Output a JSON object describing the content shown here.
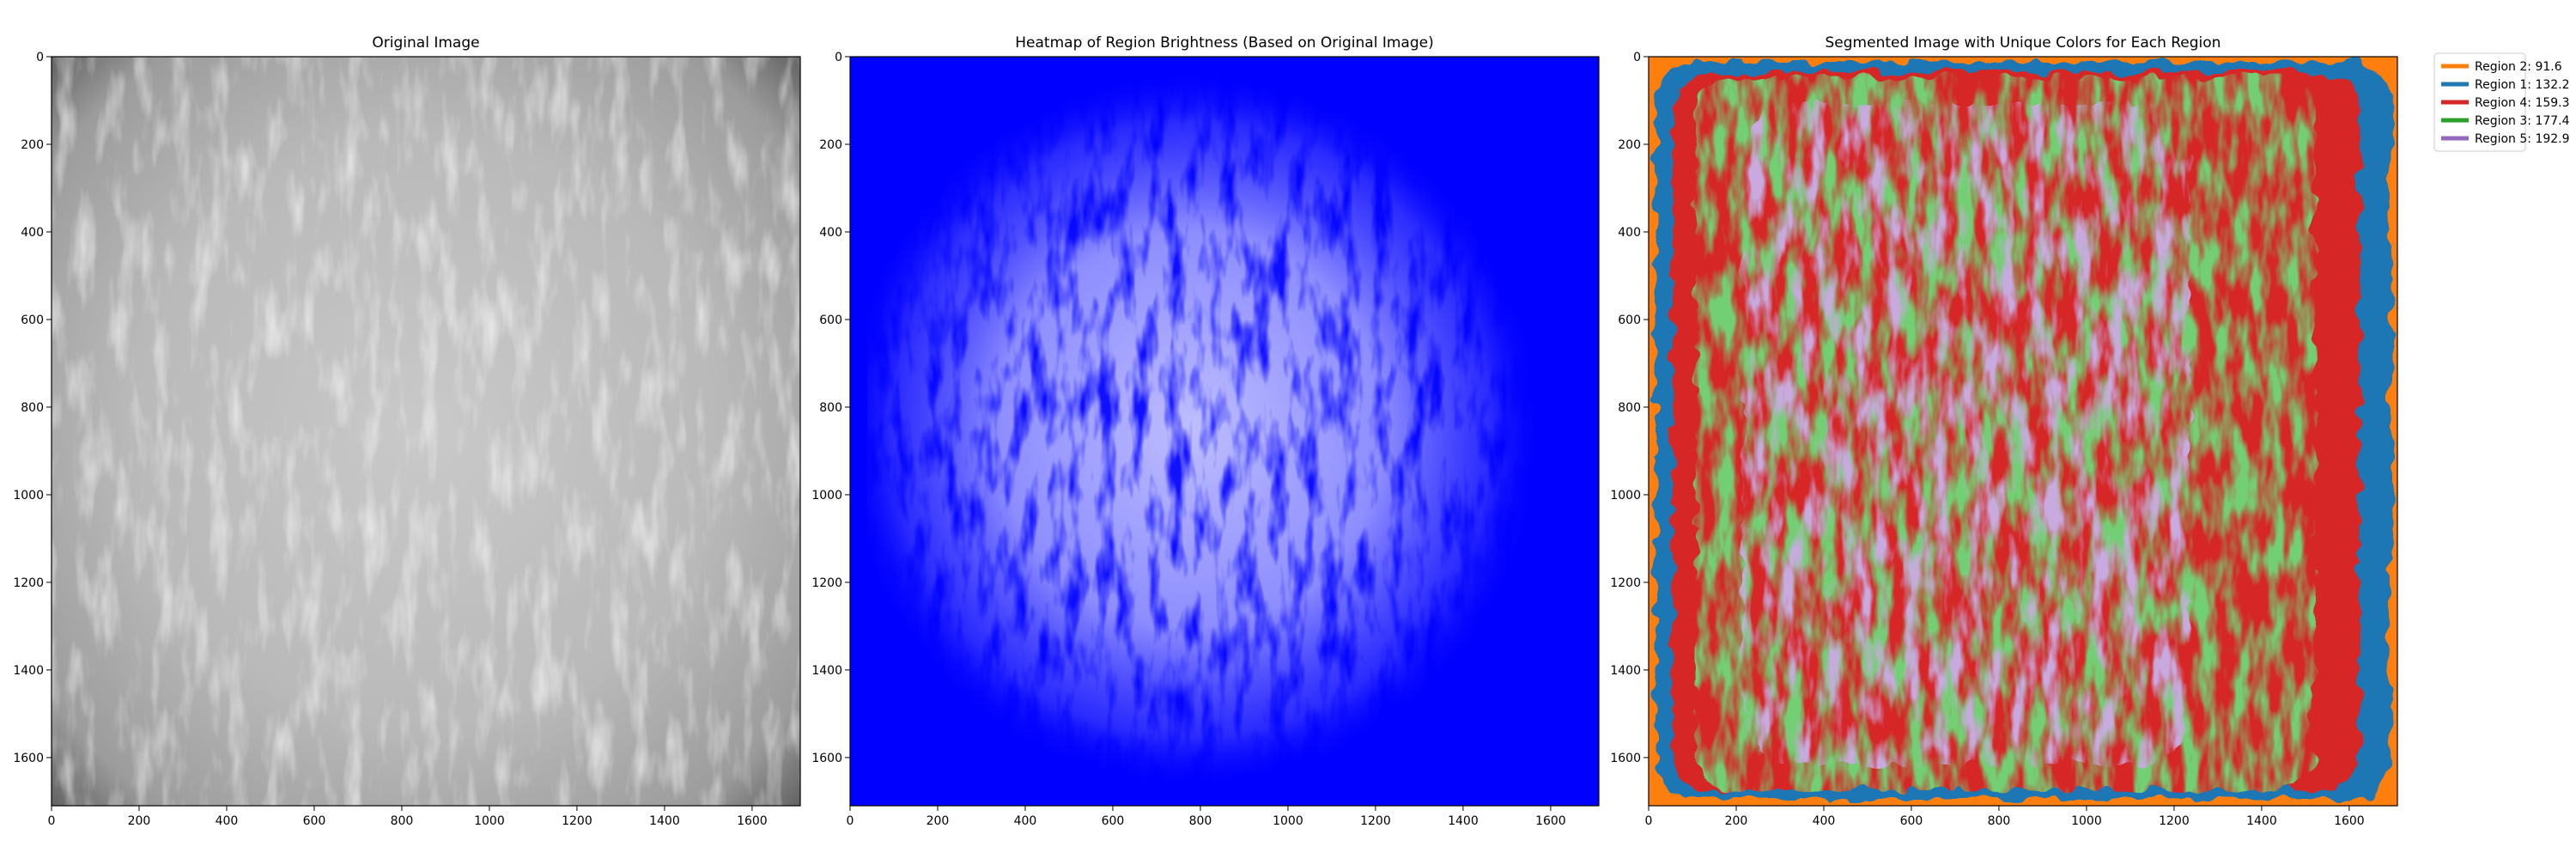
{
  "chart_data": [
    {
      "type": "image",
      "title": "Original Image",
      "colormap": "grayscale",
      "xlim": [
        0,
        1710
      ],
      "ylim": [
        1710,
        0
      ],
      "x_ticks": [
        "0",
        "200",
        "400",
        "600",
        "800",
        "1000",
        "1200",
        "1400",
        "1600"
      ],
      "y_ticks": [
        "0",
        "200",
        "400",
        "600",
        "800",
        "1000",
        "1200",
        "1400",
        "1600"
      ]
    },
    {
      "type": "heatmap",
      "title": "Heatmap of Region Brightness (Based on Original Image)",
      "colormap": [
        "#0000ff",
        "#c8c8ff"
      ],
      "xlim": [
        0,
        1710
      ],
      "ylim": [
        1710,
        0
      ],
      "x_ticks": [
        "0",
        "200",
        "400",
        "600",
        "800",
        "1000",
        "1200",
        "1400",
        "1600"
      ],
      "y_ticks": [
        "0",
        "200",
        "400",
        "600",
        "800",
        "1000",
        "1200",
        "1400",
        "1600"
      ]
    },
    {
      "type": "segmentation",
      "title": "Segmented Image with Unique Colors for Each Region",
      "xlim": [
        0,
        1710
      ],
      "ylim": [
        1710,
        0
      ],
      "x_ticks": [
        "0",
        "200",
        "400",
        "600",
        "800",
        "1000",
        "1200",
        "1400",
        "1600"
      ],
      "y_ticks": [
        "0",
        "200",
        "400",
        "600",
        "800",
        "1000",
        "1200",
        "1400",
        "1600"
      ],
      "legend_position": "outside-top-right",
      "legend": [
        {
          "label": "Region 2: 91.6",
          "color": "#ff7f0e"
        },
        {
          "label": "Region 1: 132.2",
          "color": "#1f77b4"
        },
        {
          "label": "Region 4: 159.3",
          "color": "#d62728"
        },
        {
          "label": "Region 3: 177.4",
          "color": "#2ca02c"
        },
        {
          "label": "Region 5: 192.9",
          "color": "#9467bd"
        }
      ]
    }
  ]
}
